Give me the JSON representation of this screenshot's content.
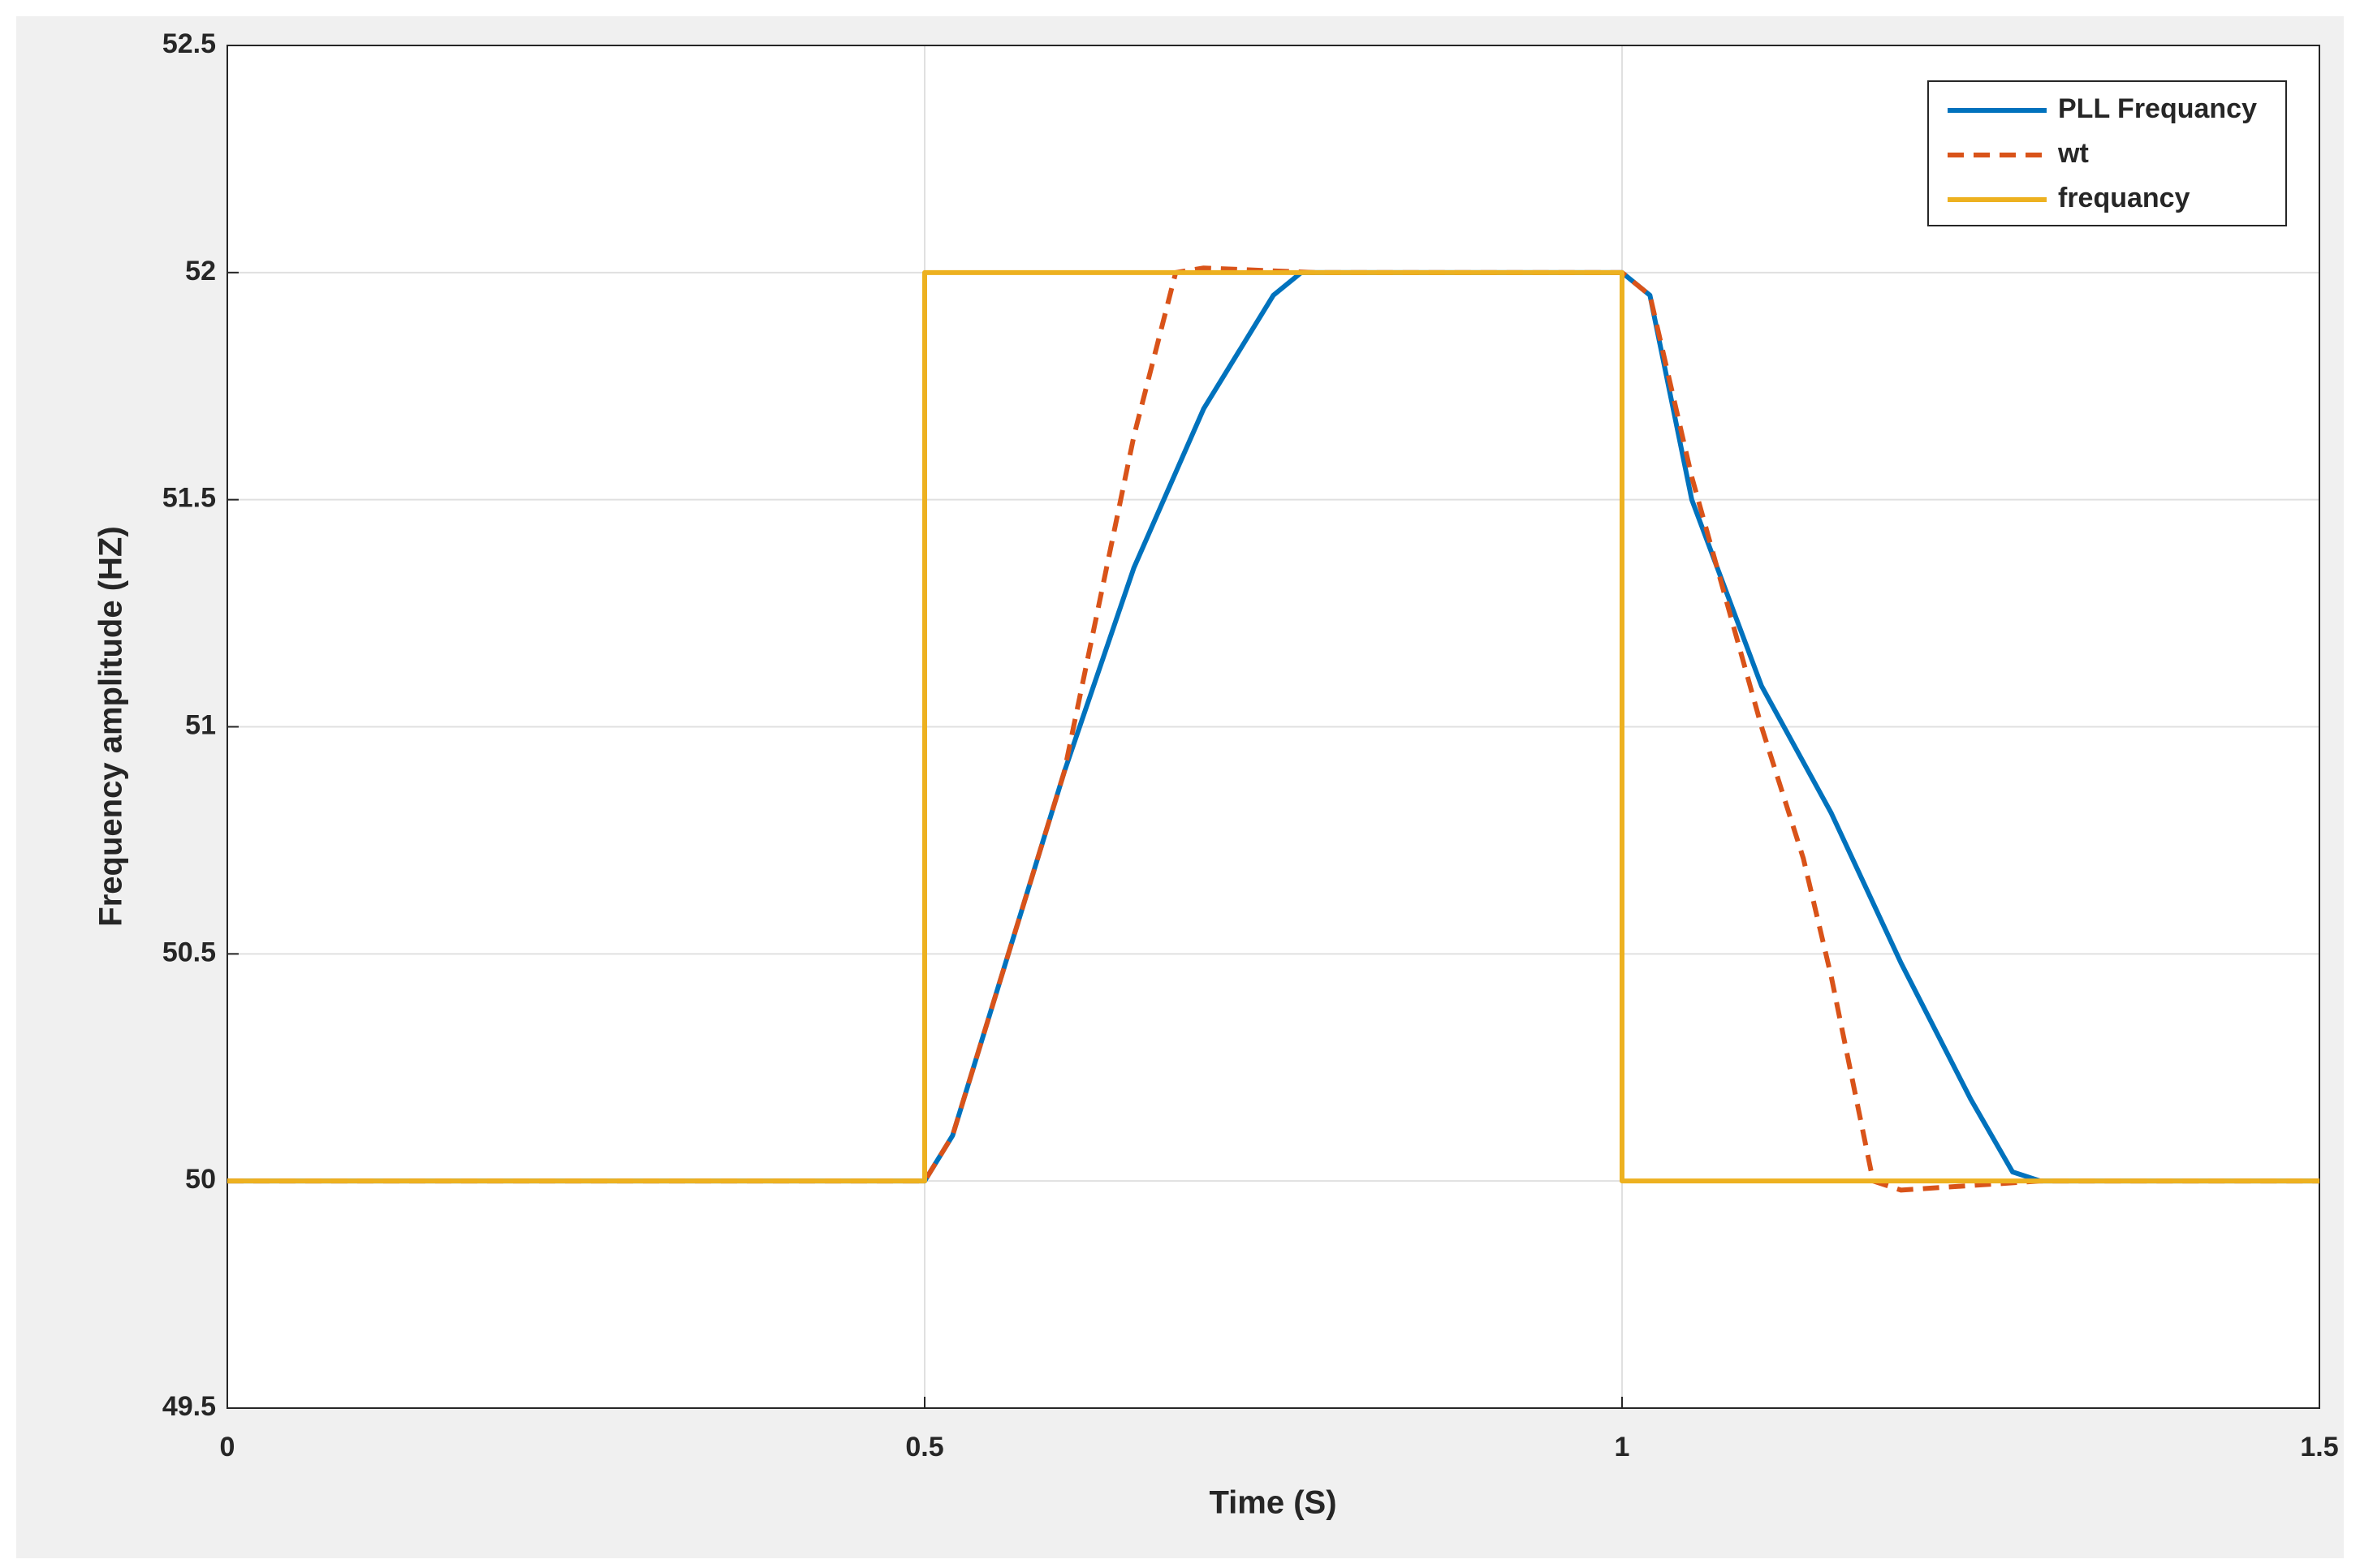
{
  "chart_data": {
    "type": "line",
    "xlabel": "Time (S)",
    "ylabel": "Frequency amplitude (HZ)",
    "xlim": [
      0,
      1.5
    ],
    "xticks": [
      0,
      0.5,
      1,
      1.5
    ],
    "ylim": [
      49.5,
      52.5
    ],
    "yticks": [
      49.5,
      50,
      50.5,
      51,
      51.5,
      52,
      52.5
    ],
    "grid": true,
    "legend": "upper right",
    "series": [
      {
        "name": "PLL Frequancy",
        "color": "#0072bd",
        "dash": false,
        "x": [
          0,
          0.5,
          0.52,
          0.55,
          0.6,
          0.65,
          0.7,
          0.75,
          0.77,
          1.0,
          1.02,
          1.05,
          1.1,
          1.15,
          1.2,
          1.25,
          1.28,
          1.3,
          1.5
        ],
        "values": [
          50,
          50,
          50.1,
          50.4,
          50.9,
          51.35,
          51.7,
          51.95,
          52,
          52,
          51.95,
          51.5,
          51.09,
          50.81,
          50.48,
          50.18,
          50.02,
          50,
          50
        ]
      },
      {
        "name": "wt",
        "color": "#d95319",
        "dash": true,
        "x": [
          0,
          0.5,
          0.52,
          0.55,
          0.6,
          0.65,
          0.68,
          0.7,
          0.78,
          1.0,
          1.02,
          1.05,
          1.1,
          1.13,
          1.15,
          1.18,
          1.2,
          1.3,
          1.5
        ],
        "values": [
          50,
          50,
          50.1,
          50.4,
          50.9,
          51.64,
          52,
          52.01,
          52,
          52,
          51.95,
          51.55,
          51.0,
          50.71,
          50.45,
          50,
          49.98,
          50,
          50
        ]
      },
      {
        "name": "frequancy",
        "color": "#edb120",
        "dash": false,
        "x": [
          0,
          0.5,
          0.5,
          1,
          1,
          1.5
        ],
        "values": [
          50,
          50,
          52,
          52,
          50,
          50
        ]
      }
    ]
  }
}
